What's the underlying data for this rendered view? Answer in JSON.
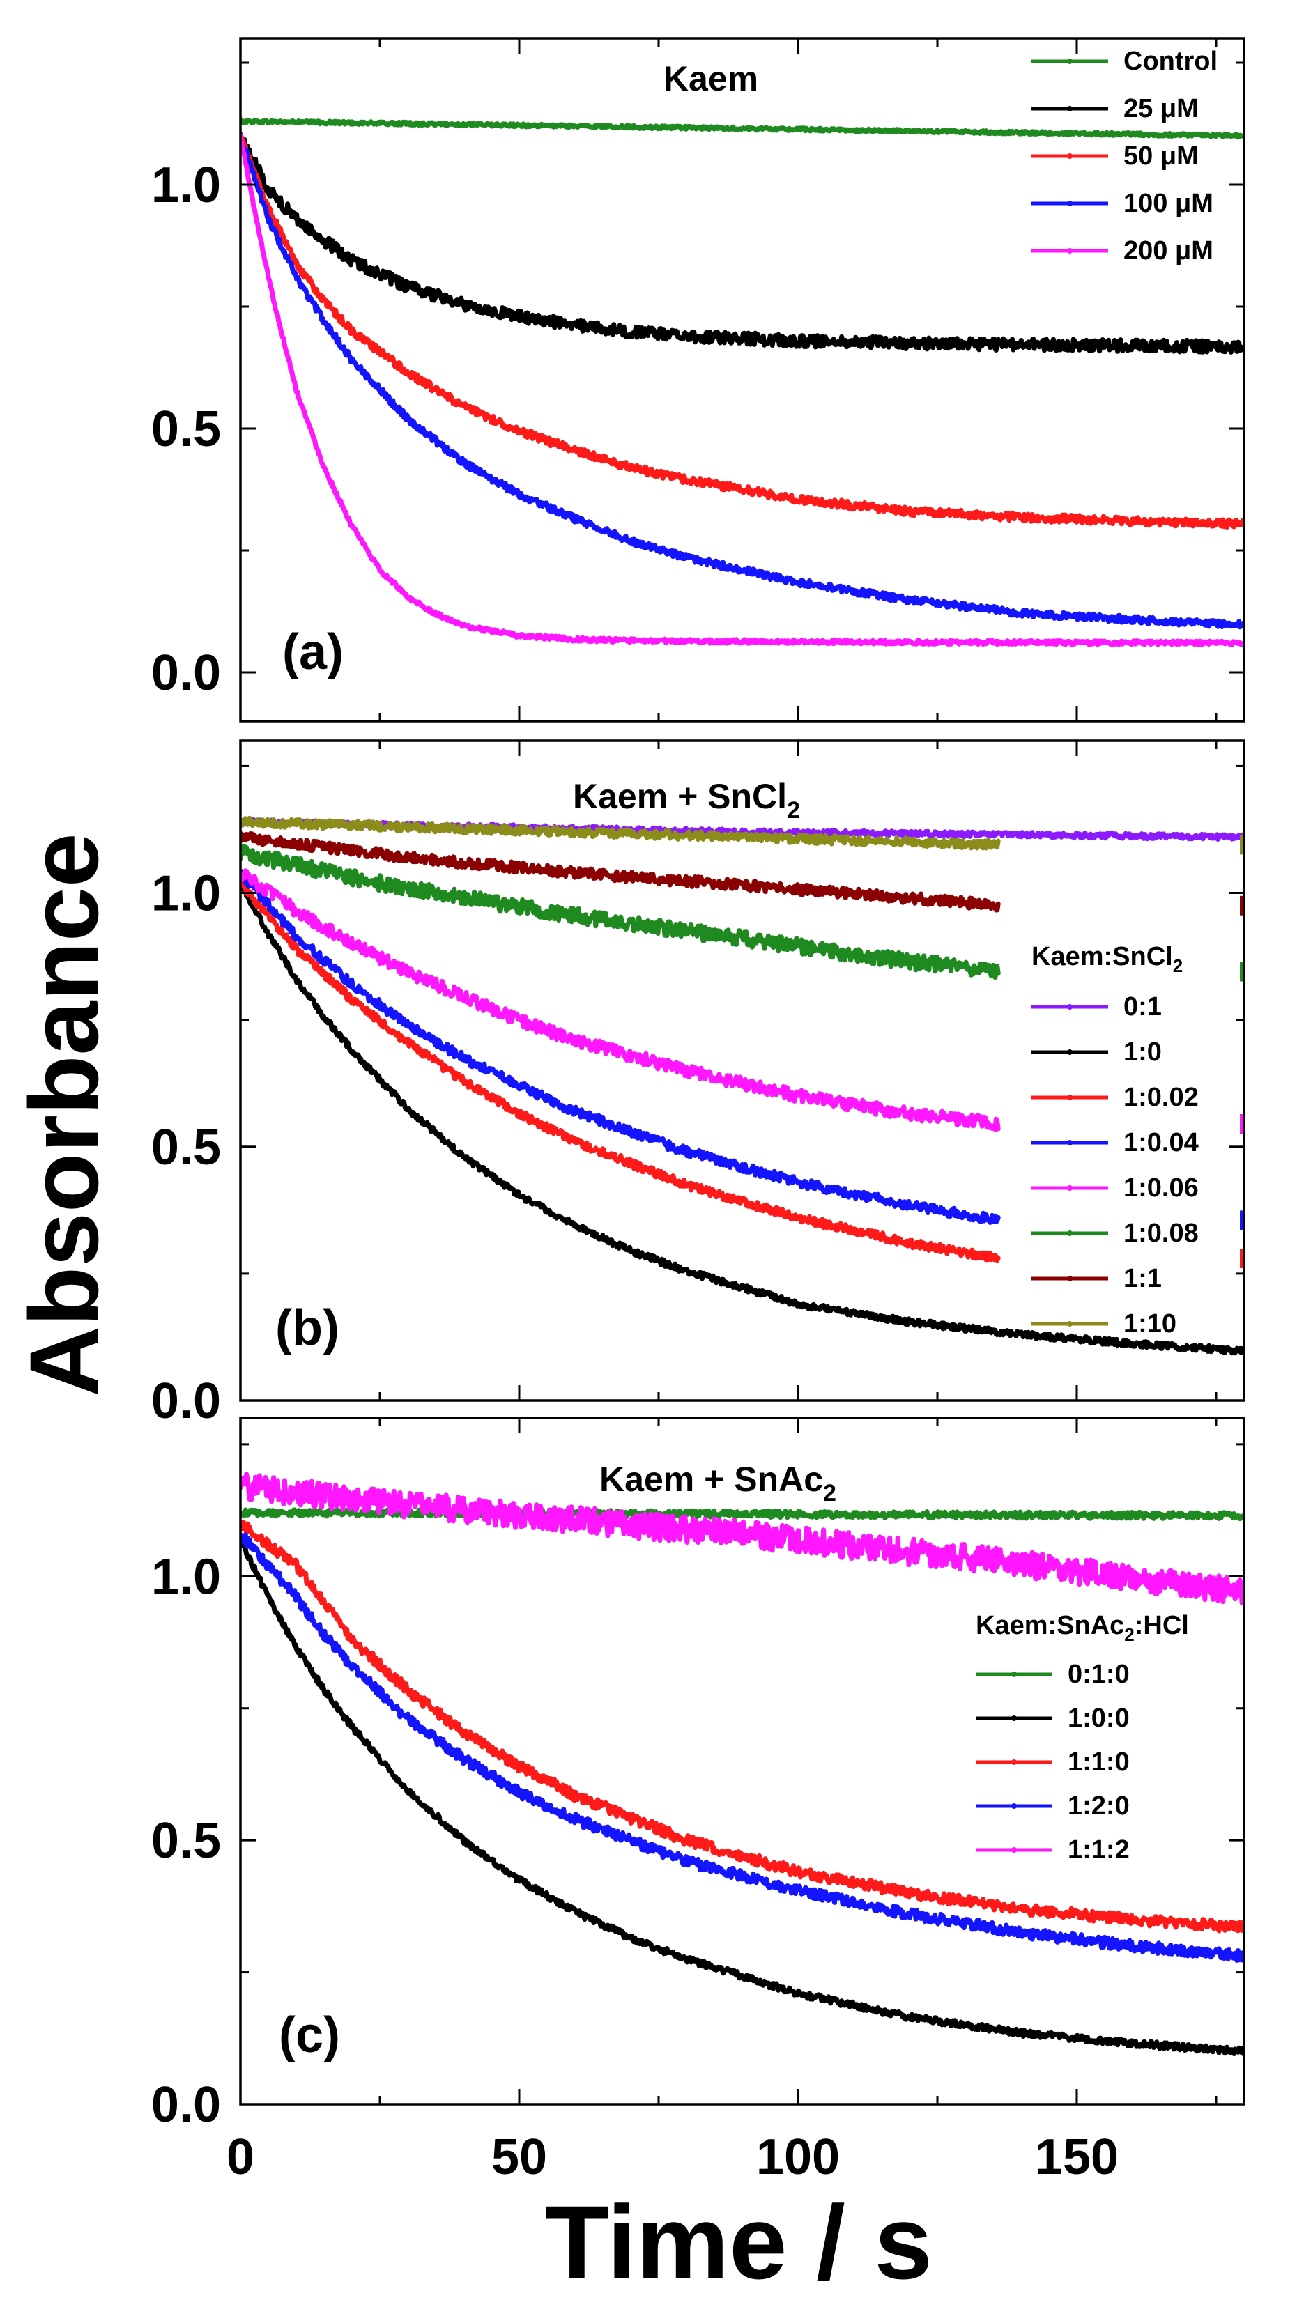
{
  "figure": {
    "xlabel": "Time / s",
    "ylabel": "Absorbance"
  },
  "chart_data": [
    {
      "type": "line",
      "panel_label": "(a)",
      "title": "Kaem",
      "title_sub": "",
      "xlabel": "Time / s",
      "ylabel": "Absorbance",
      "xlim": [
        0,
        180
      ],
      "ylim": [
        -0.1,
        1.3
      ],
      "yticks": [
        0.0,
        0.5,
        1.0
      ],
      "ytick_labels": [
        "0.0",
        "0.5",
        "1.0"
      ],
      "xticks": [
        0,
        50,
        100,
        150
      ],
      "xtick_labels": [
        "0",
        "50",
        "100",
        "150"
      ],
      "show_xtick_labels": false,
      "legend_title": "",
      "legend_title_sub": "",
      "legend_title_tail": "",
      "legend_position": "top-right",
      "series": [
        {
          "name": "Control",
          "color": "#1f8a1f",
          "x": [
            0,
            30,
            60,
            90,
            120,
            150,
            180
          ],
          "y": [
            1.13,
            1.125,
            1.12,
            1.115,
            1.11,
            1.105,
            1.1
          ],
          "noise": 0.003
        },
        {
          "name": "25 μM",
          "color": "#000000",
          "x": [
            0,
            5,
            10,
            15,
            20,
            30,
            40,
            50,
            60,
            70,
            80,
            100,
            120,
            140,
            160,
            180
          ],
          "y": [
            1.1,
            0.99,
            0.93,
            0.885,
            0.845,
            0.79,
            0.755,
            0.73,
            0.712,
            0.698,
            0.69,
            0.68,
            0.675,
            0.672,
            0.67,
            0.668
          ],
          "noise": 0.012
        },
        {
          "name": "50 μM",
          "color": "#ff1a1a",
          "x": [
            0,
            5,
            10,
            15,
            20,
            30,
            40,
            50,
            60,
            70,
            80,
            100,
            120,
            140,
            160,
            180
          ],
          "y": [
            1.1,
            0.95,
            0.84,
            0.76,
            0.7,
            0.615,
            0.545,
            0.495,
            0.455,
            0.42,
            0.395,
            0.355,
            0.33,
            0.318,
            0.31,
            0.305
          ],
          "noise": 0.008
        },
        {
          "name": "100 μM",
          "color": "#1414ff",
          "x": [
            0,
            5,
            10,
            15,
            20,
            30,
            40,
            50,
            60,
            70,
            80,
            100,
            120,
            140,
            160,
            180
          ],
          "y": [
            1.1,
            0.93,
            0.81,
            0.72,
            0.64,
            0.52,
            0.43,
            0.365,
            0.315,
            0.27,
            0.235,
            0.185,
            0.148,
            0.122,
            0.108,
            0.098
          ],
          "noise": 0.007
        },
        {
          "name": "200 μM",
          "color": "#ff18ff",
          "x": [
            0,
            3,
            6,
            10,
            15,
            20,
            25,
            30,
            35,
            40,
            50,
            60,
            70,
            80,
            100,
            120,
            150,
            180
          ],
          "y": [
            1.1,
            0.92,
            0.76,
            0.58,
            0.42,
            0.3,
            0.21,
            0.155,
            0.12,
            0.095,
            0.075,
            0.068,
            0.065,
            0.064,
            0.063,
            0.062,
            0.061,
            0.06
          ],
          "noise": 0.004
        }
      ],
      "legend_entries": [
        "Control",
        "25 μM",
        "50 μM",
        "100 μM",
        "200 μM"
      ]
    },
    {
      "type": "line",
      "panel_label": "(b)",
      "title": "Kaem + SnCl",
      "title_sub": "2",
      "xlabel": "Time / s",
      "ylabel": "Absorbance",
      "xlim": [
        0,
        180
      ],
      "ylim": [
        0.0,
        1.3
      ],
      "yticks": [
        0.0,
        0.5,
        1.0
      ],
      "ytick_labels": [
        "0.0",
        "0.5",
        "1.0"
      ],
      "xticks": [
        0,
        50,
        100,
        150
      ],
      "xtick_labels": [
        "0",
        "50",
        "100",
        "150"
      ],
      "show_xtick_labels": false,
      "legend_title": "Kaem:SnCl",
      "legend_title_sub": "2",
      "legend_title_tail": "",
      "legend_position": "right",
      "series": [
        {
          "name": "0:1",
          "color": "#8c1aff",
          "x": [
            0,
            45,
            90,
            135,
            180
          ],
          "y": [
            1.14,
            1.13,
            1.12,
            1.115,
            1.11
          ],
          "noise": 0.005,
          "xmax": 180
        },
        {
          "name": "1:0",
          "color": "#000000",
          "x": [
            0,
            5,
            10,
            15,
            20,
            30,
            40,
            50,
            60,
            70,
            80,
            100,
            120,
            140,
            160,
            180
          ],
          "y": [
            1.02,
            0.92,
            0.83,
            0.755,
            0.69,
            0.575,
            0.48,
            0.405,
            0.345,
            0.295,
            0.255,
            0.19,
            0.155,
            0.13,
            0.112,
            0.098
          ],
          "noise": 0.006,
          "xmax": 180
        },
        {
          "name": "1:0.02",
          "color": "#ff1a1a",
          "x": [
            0,
            10,
            20,
            30,
            40,
            50,
            60,
            80,
            100,
            120,
            136
          ],
          "y": [
            1.02,
            0.89,
            0.79,
            0.705,
            0.63,
            0.565,
            0.51,
            0.425,
            0.36,
            0.31,
            0.28
          ],
          "noise": 0.008,
          "xmax": 136
        },
        {
          "name": "1:0.04",
          "color": "#1414ff",
          "x": [
            0,
            10,
            20,
            30,
            40,
            50,
            60,
            80,
            100,
            120,
            136
          ],
          "y": [
            1.04,
            0.915,
            0.82,
            0.74,
            0.675,
            0.62,
            0.57,
            0.49,
            0.43,
            0.385,
            0.355
          ],
          "noise": 0.009,
          "xmax": 136
        },
        {
          "name": "1:0.06",
          "color": "#ff18ff",
          "x": [
            0,
            10,
            20,
            30,
            40,
            50,
            60,
            80,
            100,
            120,
            136
          ],
          "y": [
            1.04,
            0.965,
            0.9,
            0.845,
            0.795,
            0.75,
            0.71,
            0.65,
            0.6,
            0.565,
            0.545
          ],
          "noise": 0.012,
          "xmax": 136
        },
        {
          "name": "1:0.08",
          "color": "#1f8a1f",
          "x": [
            0,
            20,
            40,
            60,
            80,
            100,
            120,
            136
          ],
          "y": [
            1.08,
            1.03,
            0.99,
            0.955,
            0.925,
            0.895,
            0.865,
            0.845
          ],
          "noise": 0.015,
          "xmax": 136
        },
        {
          "name": "1:1",
          "color": "#8b0000",
          "x": [
            0,
            30,
            60,
            90,
            120,
            136
          ],
          "y": [
            1.11,
            1.07,
            1.04,
            1.015,
            0.99,
            0.975
          ],
          "noise": 0.01,
          "xmax": 136
        },
        {
          "name": "1:10",
          "color": "#8c8c1a",
          "x": [
            0,
            45,
            90,
            136
          ],
          "y": [
            1.14,
            1.125,
            1.11,
            1.095
          ],
          "noise": 0.008,
          "xmax": 136
        }
      ],
      "legend_entries": [
        "0:1",
        "1:0",
        "1:0.02",
        "1:0.04",
        "1:0.06",
        "1:0.08",
        "1:1",
        "1:10"
      ]
    },
    {
      "type": "line",
      "panel_label": "(c)",
      "title": "Kaem + SnAc",
      "title_sub": "2",
      "xlabel": "Time / s",
      "ylabel": "Absorbance",
      "xlim": [
        0,
        180
      ],
      "ylim": [
        0.0,
        1.3
      ],
      "yticks": [
        0.0,
        0.5,
        1.0
      ],
      "ytick_labels": [
        "0.0",
        "0.5",
        "1.0"
      ],
      "xticks": [
        0,
        50,
        100,
        150
      ],
      "xtick_labels": [
        "0",
        "50",
        "100",
        "150"
      ],
      "show_xtick_labels": true,
      "legend_title": "Kaem:SnAc",
      "legend_title_sub": "2",
      "legend_title_tail": ":HCl",
      "legend_position": "right",
      "series": [
        {
          "name": "0:1:0",
          "color": "#1f8a1f",
          "x": [
            0,
            45,
            90,
            135,
            180
          ],
          "y": [
            1.12,
            1.12,
            1.118,
            1.116,
            1.115
          ],
          "noise": 0.006
        },
        {
          "name": "1:0:0",
          "color": "#000000",
          "x": [
            0,
            5,
            10,
            15,
            20,
            30,
            40,
            50,
            60,
            70,
            80,
            100,
            120,
            140,
            160,
            180
          ],
          "y": [
            1.07,
            0.96,
            0.865,
            0.785,
            0.715,
            0.595,
            0.5,
            0.425,
            0.365,
            0.315,
            0.275,
            0.21,
            0.165,
            0.135,
            0.115,
            0.1
          ],
          "noise": 0.006
        },
        {
          "name": "1:1:0",
          "color": "#ff1a1a",
          "x": [
            0,
            10,
            15,
            20,
            30,
            40,
            50,
            60,
            80,
            100,
            120,
            140,
            160,
            180
          ],
          "y": [
            1.1,
            1.02,
            0.95,
            0.88,
            0.785,
            0.705,
            0.64,
            0.585,
            0.5,
            0.44,
            0.4,
            0.37,
            0.35,
            0.335
          ],
          "noise": 0.01
        },
        {
          "name": "1:2:0",
          "color": "#1414ff",
          "x": [
            0,
            10,
            15,
            20,
            30,
            40,
            50,
            60,
            80,
            100,
            120,
            140,
            160,
            180
          ],
          "y": [
            1.08,
            0.96,
            0.89,
            0.83,
            0.73,
            0.655,
            0.59,
            0.54,
            0.46,
            0.405,
            0.36,
            0.325,
            0.3,
            0.28
          ],
          "noise": 0.01
        },
        {
          "name": "1:1:2",
          "color": "#ff18ff",
          "x": [
            0,
            45,
            90,
            135,
            180
          ],
          "y": [
            1.17,
            1.12,
            1.08,
            1.03,
            0.97
          ],
          "noise": 0.025
        }
      ],
      "legend_entries": [
        "0:1:0",
        "1:0:0",
        "1:1:0",
        "1:2:0",
        "1:1:2"
      ]
    }
  ]
}
